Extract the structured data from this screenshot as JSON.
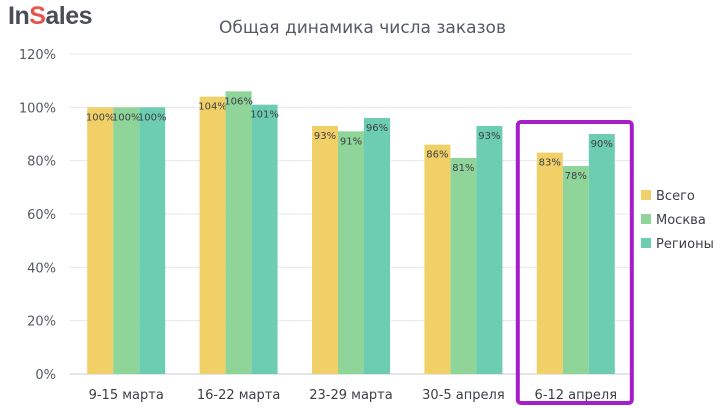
{
  "logo": {
    "part1": "In",
    "part2": "S",
    "part3": "ales"
  },
  "chart_data": {
    "type": "bar",
    "title": "Общая динамика числа заказов",
    "categories": [
      "9-15 марта",
      "16-22 марта",
      "23-29 марта",
      "30-5 апреля",
      "6-12 апреля"
    ],
    "series": [
      {
        "name": "Всего",
        "color": "#f2d068",
        "values": [
          100,
          104,
          93,
          86,
          83
        ]
      },
      {
        "name": "Москва",
        "color": "#8fd59a",
        "values": [
          100,
          106,
          91,
          81,
          78
        ]
      },
      {
        "name": "Регионы",
        "color": "#6ccdb2",
        "values": [
          100,
          101,
          96,
          93,
          90
        ]
      }
    ],
    "ylim": [
      0,
      120
    ],
    "yticks": [
      "0%",
      "20%",
      "40%",
      "60%",
      "80%",
      "100%",
      "120%"
    ],
    "ytick_values": [
      0,
      20,
      40,
      60,
      80,
      100,
      120
    ],
    "value_suffix": "%",
    "grid": true,
    "legend_position": "right",
    "highlight": {
      "category": "6-12 апреля",
      "color": "#a61ec8"
    }
  }
}
